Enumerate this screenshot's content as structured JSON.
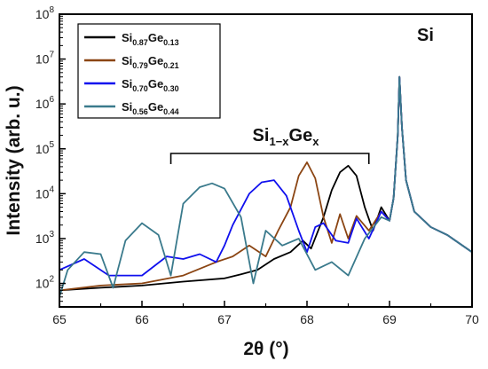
{
  "chart_data": {
    "type": "line",
    "title": "",
    "xlabel": "2θ (°)",
    "ylabel": "Intensity (arb. u.)",
    "xlim": [
      65,
      70
    ],
    "ylim": [
      30,
      100000000
    ],
    "yscale": "log",
    "x_ticks": [
      "65",
      "66",
      "67",
      "68",
      "69",
      "70"
    ],
    "y_ticks": [
      {
        "base": "10",
        "exp": "2",
        "value": 100
      },
      {
        "base": "10",
        "exp": "3",
        "value": 1000
      },
      {
        "base": "10",
        "exp": "4",
        "value": 10000
      },
      {
        "base": "10",
        "exp": "5",
        "value": 100000
      },
      {
        "base": "10",
        "exp": "6",
        "value": 1000000
      },
      {
        "base": "10",
        "exp": "7",
        "value": 10000000
      },
      {
        "base": "10",
        "exp": "8",
        "value": 100000000
      }
    ],
    "legend_position": "top-left",
    "series": [
      {
        "name": "Si0.87Ge0.13",
        "label_parts": {
          "a": "Si",
          "sa": "0.87",
          "b": "Ge",
          "sb": "0.13"
        },
        "color": "#000000",
        "x": [
          65.0,
          65.5,
          66.0,
          66.5,
          67.0,
          67.2,
          67.4,
          67.6,
          67.8,
          67.95,
          68.05,
          68.2,
          68.3,
          68.4,
          68.5,
          68.6,
          68.7,
          68.8,
          68.9,
          69.0,
          69.05,
          69.1,
          69.12,
          69.15,
          69.2,
          69.3,
          69.5,
          69.7,
          70.0
        ],
        "y": [
          70,
          80,
          90,
          110,
          130,
          160,
          200,
          350,
          500,
          900,
          600,
          3000,
          12000,
          30000,
          42000,
          25000,
          5000,
          1500,
          5000,
          2500,
          8000,
          200000,
          4000000,
          300000,
          20000,
          4000,
          1800,
          1200,
          500
        ]
      },
      {
        "name": "Si0.79Ge0.21",
        "label_parts": {
          "a": "Si",
          "sa": "0.79",
          "b": "Ge",
          "sb": "0.21"
        },
        "color": "#8b4513",
        "x": [
          65.0,
          65.5,
          66.0,
          66.5,
          66.9,
          67.1,
          67.3,
          67.5,
          67.65,
          67.8,
          67.9,
          68.0,
          68.1,
          68.2,
          68.3,
          68.4,
          68.5,
          68.6,
          68.75,
          68.9,
          69.0,
          69.05,
          69.1,
          69.12,
          69.15,
          69.2,
          69.3,
          69.5,
          69.7,
          70.0
        ],
        "y": [
          70,
          90,
          100,
          150,
          300,
          400,
          700,
          400,
          1500,
          5000,
          25000,
          50000,
          22000,
          3000,
          800,
          3500,
          1000,
          3200,
          1500,
          4000,
          2500,
          8000,
          200000,
          4000000,
          300000,
          20000,
          4000,
          1800,
          1200,
          500
        ]
      },
      {
        "name": "Si0.70Ge0.30",
        "label_parts": {
          "a": "Si",
          "sa": "0.70",
          "b": "Ge",
          "sb": "0.30"
        },
        "color": "#1010ee",
        "x": [
          65.0,
          65.3,
          65.6,
          66.0,
          66.3,
          66.5,
          66.7,
          66.9,
          67.0,
          67.1,
          67.3,
          67.45,
          67.6,
          67.75,
          67.9,
          68.0,
          68.1,
          68.2,
          68.35,
          68.5,
          68.6,
          68.75,
          68.9,
          69.0,
          69.05,
          69.1,
          69.12,
          69.15,
          69.2,
          69.3,
          69.5,
          69.7,
          70.0
        ],
        "y": [
          200,
          350,
          150,
          150,
          400,
          350,
          450,
          300,
          700,
          2000,
          10000,
          18000,
          20000,
          9000,
          1500,
          500,
          1800,
          2200,
          900,
          800,
          2800,
          1000,
          4000,
          2500,
          8000,
          200000,
          4000000,
          300000,
          20000,
          4000,
          1800,
          1200,
          500
        ]
      },
      {
        "name": "Si0.56Ge0.44",
        "label_parts": {
          "a": "Si",
          "sa": "0.56",
          "b": "Ge",
          "sb": "0.44"
        },
        "color": "#3a7a8c",
        "x": [
          65.0,
          65.1,
          65.3,
          65.5,
          65.65,
          65.8,
          66.0,
          66.2,
          66.35,
          66.5,
          66.7,
          66.85,
          67.0,
          67.2,
          67.35,
          67.5,
          67.7,
          67.9,
          68.1,
          68.3,
          68.5,
          68.7,
          68.9,
          69.0,
          69.05,
          69.1,
          69.12,
          69.15,
          69.2,
          69.3,
          69.5,
          69.7,
          70.0
        ],
        "y": [
          50,
          200,
          500,
          450,
          80,
          900,
          2200,
          1200,
          150,
          6000,
          14000,
          17000,
          13000,
          3000,
          100,
          1500,
          700,
          1000,
          200,
          300,
          150,
          1000,
          3000,
          2500,
          8000,
          200000,
          4000000,
          300000,
          20000,
          4000,
          1800,
          1200,
          500
        ]
      }
    ],
    "annotations": {
      "si_peak": "Si",
      "sige_bracket": {
        "main": "Si",
        "sub1": "1−x",
        "mid": "Ge",
        "sub2": "x",
        "x_range": [
          66.35,
          68.75
        ],
        "y": 14000
      }
    }
  }
}
